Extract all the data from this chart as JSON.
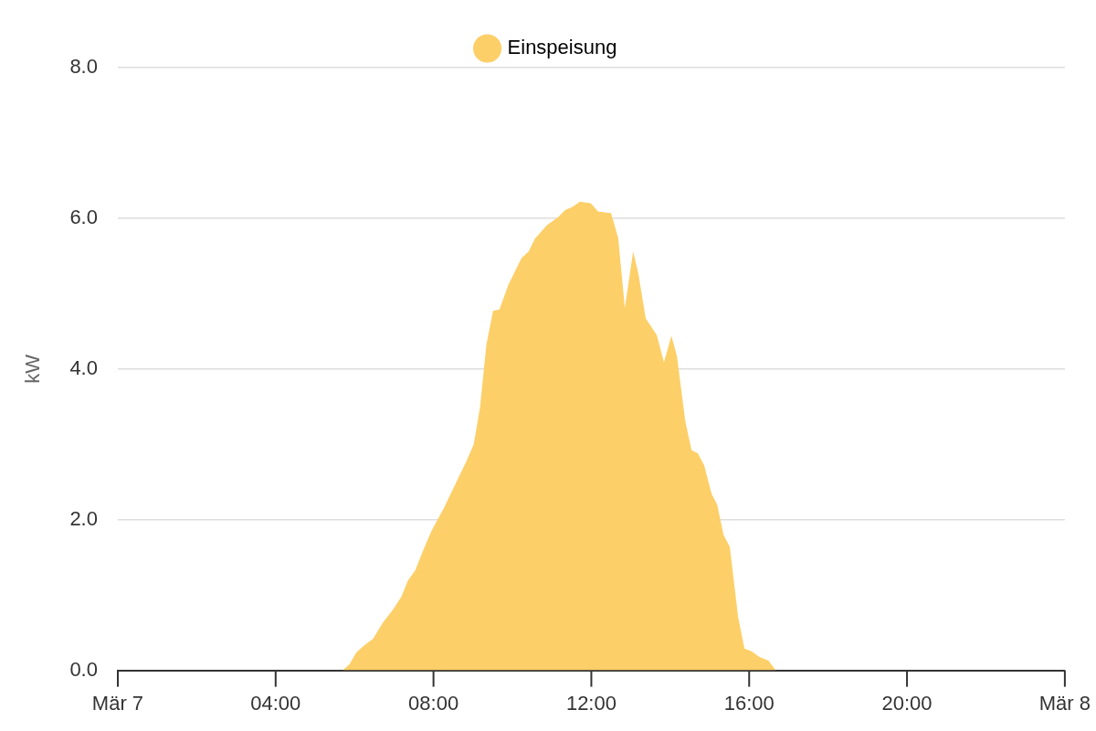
{
  "chart_data": {
    "type": "area",
    "ylabel": "kW",
    "legend": "top",
    "grid": "y",
    "marker": "none",
    "xlim": [
      0,
      24
    ],
    "xticks": [
      {
        "value": 0,
        "label": "Mär 7"
      },
      {
        "value": 4,
        "label": "04:00"
      },
      {
        "value": 8,
        "label": "08:00"
      },
      {
        "value": 12,
        "label": "12:00"
      },
      {
        "value": 16,
        "label": "16:00"
      },
      {
        "value": 20,
        "label": "20:00"
      },
      {
        "value": 24,
        "label": "Mär 8"
      }
    ],
    "ylim": [
      0,
      8
    ],
    "yticks": [
      {
        "value": 0,
        "label": "0.0"
      },
      {
        "value": 2,
        "label": "2.0"
      },
      {
        "value": 4,
        "label": "4.0"
      },
      {
        "value": 6,
        "label": "6.0"
      },
      {
        "value": 8,
        "label": "8.0"
      }
    ],
    "series": [
      {
        "name": "Einspeisung",
        "color": "#fdcf68",
        "x": [
          5.7,
          5.87,
          6.05,
          6.24,
          6.47,
          6.7,
          6.98,
          7.19,
          7.35,
          7.54,
          7.72,
          7.95,
          8.26,
          8.6,
          8.83,
          9.02,
          9.18,
          9.34,
          9.51,
          9.67,
          9.9,
          10.23,
          10.41,
          10.57,
          10.88,
          11.15,
          11.34,
          11.52,
          11.71,
          11.99,
          12.17,
          12.5,
          12.68,
          12.85,
          13.06,
          13.19,
          13.38,
          13.66,
          13.84,
          14.03,
          14.17,
          14.38,
          14.54,
          14.7,
          14.86,
          15.05,
          15.19,
          15.35,
          15.51,
          15.72,
          15.88,
          16.07,
          16.25,
          16.49,
          16.67
        ],
        "values": [
          0,
          0.08,
          0.24,
          0.33,
          0.42,
          0.62,
          0.81,
          0.98,
          1.19,
          1.33,
          1.57,
          1.85,
          2.15,
          2.52,
          2.77,
          3.0,
          3.49,
          4.32,
          4.77,
          4.79,
          5.12,
          5.47,
          5.56,
          5.73,
          5.91,
          6.01,
          6.11,
          6.15,
          6.22,
          6.2,
          6.09,
          6.07,
          5.74,
          4.81,
          5.56,
          5.27,
          4.67,
          4.45,
          4.09,
          4.44,
          4.17,
          3.31,
          2.92,
          2.88,
          2.72,
          2.34,
          2.2,
          1.8,
          1.64,
          0.71,
          0.29,
          0.25,
          0.18,
          0.13,
          0
        ]
      }
    ]
  }
}
